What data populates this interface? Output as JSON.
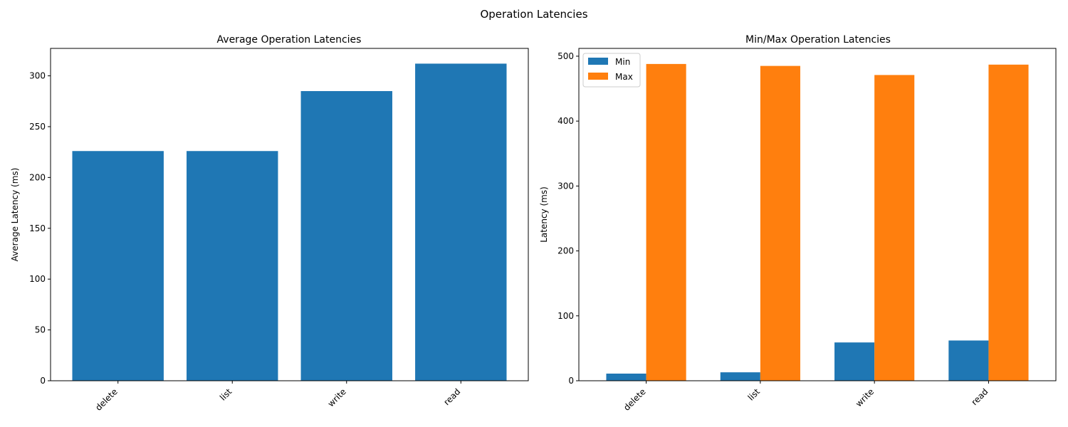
{
  "figure": {
    "title": "Operation Latencies"
  },
  "chart_data": [
    {
      "type": "bar",
      "title": "Average Operation Latencies",
      "xlabel": "",
      "ylabel": "Average Latency (ms)",
      "categories": [
        "delete",
        "list",
        "write",
        "read"
      ],
      "values": [
        226,
        226,
        285,
        312
      ],
      "ylim": [
        0,
        327
      ],
      "yticks": [
        0,
        50,
        100,
        150,
        200,
        250,
        300
      ],
      "grid": false,
      "color": "#1f77b4"
    },
    {
      "type": "bar",
      "title": "Min/Max Operation Latencies",
      "xlabel": "",
      "ylabel": "Latency (ms)",
      "categories": [
        "delete",
        "list",
        "write",
        "read"
      ],
      "series": [
        {
          "name": "Min",
          "values": [
            11,
            13,
            59,
            62
          ],
          "color": "#1f77b4"
        },
        {
          "name": "Max",
          "values": [
            488,
            485,
            471,
            487
          ],
          "color": "#ff7f0e"
        }
      ],
      "ylim": [
        0,
        512
      ],
      "yticks": [
        0,
        100,
        200,
        300,
        400,
        500
      ],
      "grid": false,
      "legend": "top-left"
    }
  ]
}
